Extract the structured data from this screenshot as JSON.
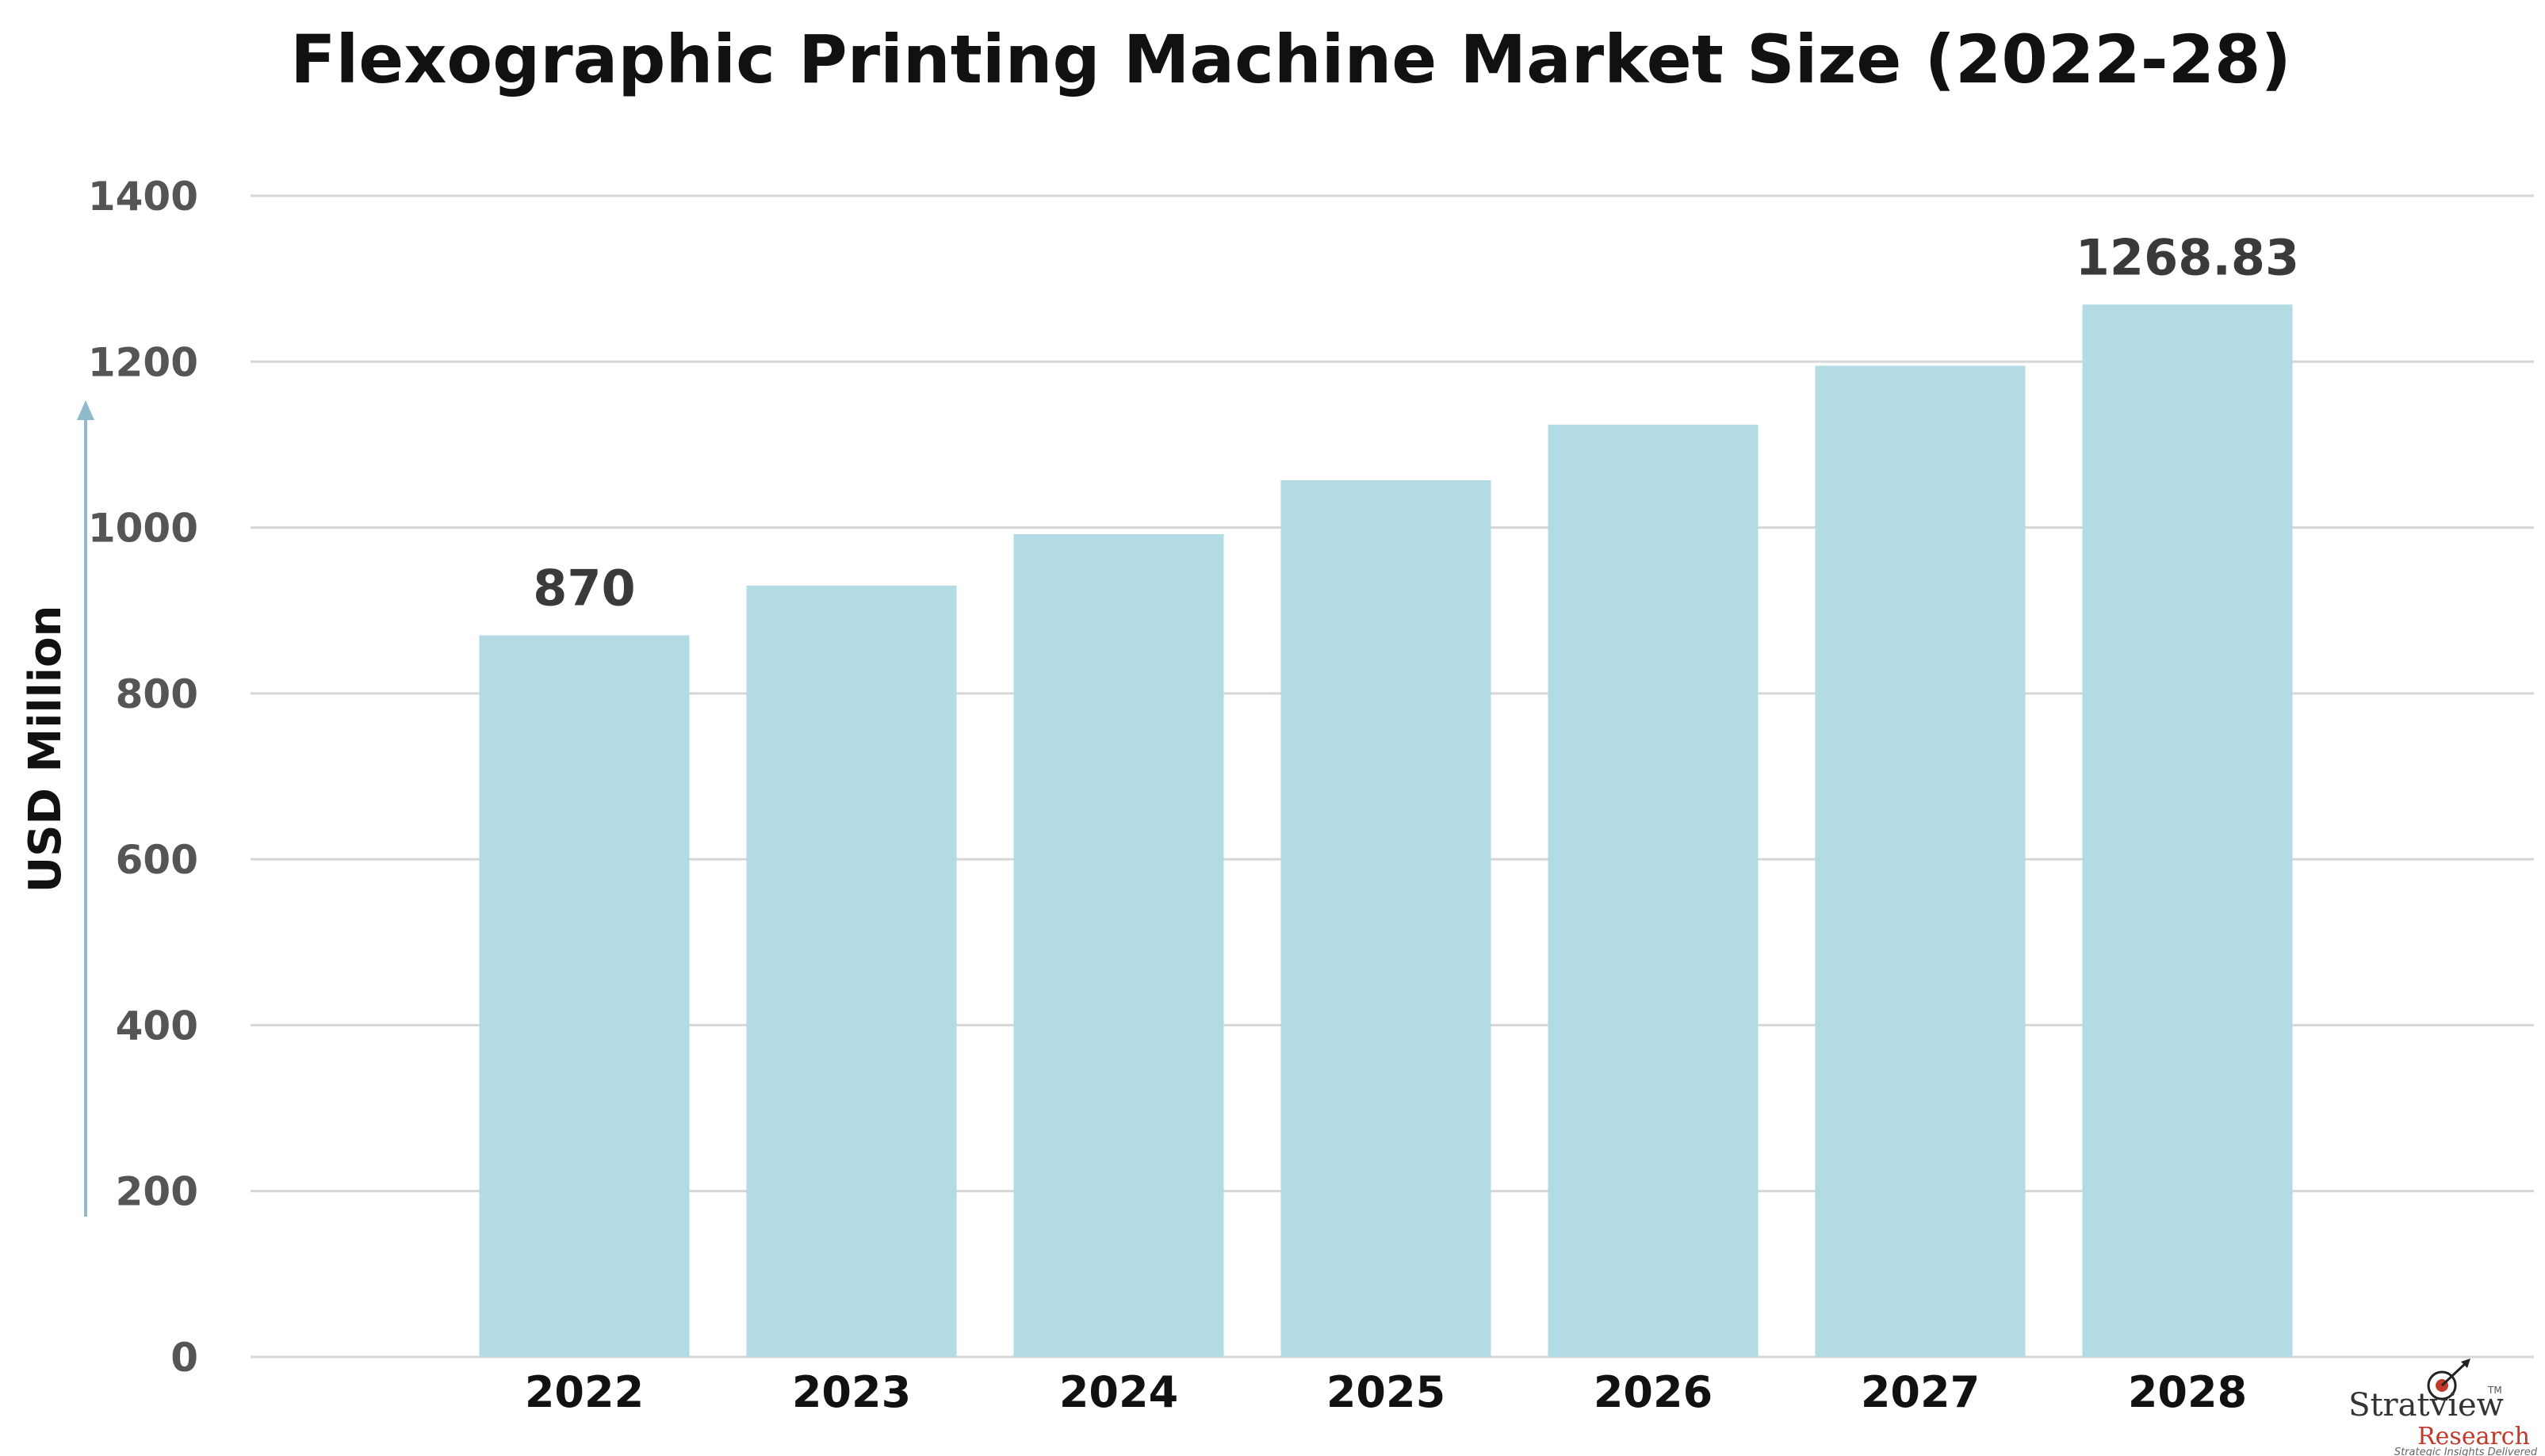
{
  "chart_data": {
    "type": "bar",
    "title": "Flexographic Printing Machine Market Size (2022-28)",
    "ylabel": "USD Million",
    "xlabel": "",
    "categories": [
      "2022",
      "2023",
      "2024",
      "2025",
      "2026",
      "2027",
      "2028"
    ],
    "values": [
      870,
      930,
      992,
      1057,
      1124,
      1195,
      1268.83
    ],
    "data_labels": [
      "870",
      "",
      "",
      "",
      "",
      "",
      "1268.83"
    ],
    "ylim": [
      0,
      1400
    ],
    "yticks": [
      0,
      200,
      400,
      600,
      800,
      1000,
      1200,
      1400
    ],
    "grid": true,
    "legend": "none",
    "colors": {
      "bar": "#b3dbe3",
      "grid": "#d6d6d6",
      "axis_arrow": "#8fb9cc"
    }
  },
  "logo": {
    "name": "Stratview",
    "sub": "Research",
    "tagline": "Strategic Insights Delivered",
    "tm": "TM"
  }
}
